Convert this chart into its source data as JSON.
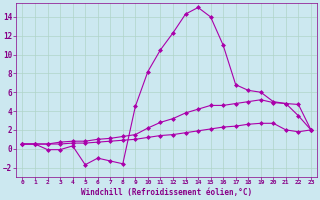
{
  "bg_color": "#cce8f0",
  "grid_color": "#b0d4c8",
  "line_color": "#aa00aa",
  "marker_color": "#aa00aa",
  "xlabel": "Windchill (Refroidissement éolien,°C)",
  "xlabel_color": "#880088",
  "tick_color": "#880088",
  "xlim": [
    -0.5,
    23.5
  ],
  "ylim": [
    -3.0,
    15.5
  ],
  "yticks": [
    -2,
    0,
    2,
    4,
    6,
    8,
    10,
    12,
    14
  ],
  "xticks": [
    0,
    1,
    2,
    3,
    4,
    5,
    6,
    7,
    8,
    9,
    10,
    11,
    12,
    13,
    14,
    15,
    16,
    17,
    18,
    19,
    20,
    21,
    22,
    23
  ],
  "line1_x": [
    0,
    1,
    2,
    3,
    4,
    5,
    6,
    7,
    8,
    9,
    10,
    11,
    12,
    13,
    14,
    15,
    16,
    17,
    18,
    19,
    20,
    21,
    22,
    23
  ],
  "line1_y": [
    0.5,
    0.5,
    -0.1,
    -0.1,
    0.3,
    -1.7,
    -1.0,
    -1.3,
    -1.6,
    4.5,
    8.2,
    10.5,
    12.3,
    14.3,
    15.0,
    14.0,
    11.0,
    6.8,
    6.2,
    6.0,
    5.0,
    4.8,
    3.5,
    2.0
  ],
  "line2_x": [
    0,
    1,
    2,
    3,
    4,
    5,
    6,
    7,
    8,
    9,
    10,
    11,
    12,
    13,
    14,
    15,
    16,
    17,
    18,
    19,
    20,
    21,
    22,
    23
  ],
  "line2_y": [
    0.5,
    0.5,
    0.5,
    0.7,
    0.8,
    0.8,
    1.0,
    1.1,
    1.3,
    1.5,
    2.2,
    2.8,
    3.2,
    3.8,
    4.2,
    4.6,
    4.6,
    4.8,
    5.0,
    5.2,
    4.9,
    4.8,
    4.7,
    2.0
  ],
  "line3_x": [
    0,
    1,
    2,
    3,
    4,
    5,
    6,
    7,
    8,
    9,
    10,
    11,
    12,
    13,
    14,
    15,
    16,
    17,
    18,
    19,
    20,
    21,
    22,
    23
  ],
  "line3_y": [
    0.5,
    0.5,
    0.5,
    0.5,
    0.6,
    0.6,
    0.7,
    0.8,
    0.9,
    1.0,
    1.2,
    1.4,
    1.5,
    1.7,
    1.9,
    2.1,
    2.3,
    2.4,
    2.6,
    2.7,
    2.7,
    2.0,
    1.8,
    2.0
  ]
}
